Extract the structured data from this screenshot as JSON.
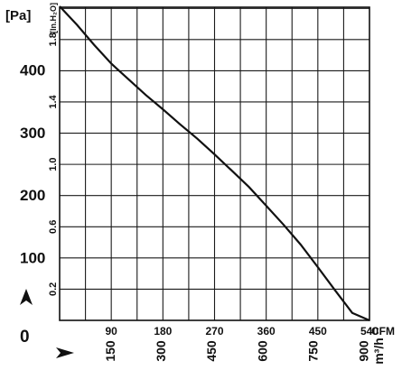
{
  "chart_data": {
    "type": "line",
    "x_unit_primary": "CFM",
    "x_unit_secondary": "m³/h",
    "y_unit_primary": "[Pa]",
    "y_unit_secondary": "[In.H₂O]",
    "xlim": [
      0,
      540
    ],
    "ylim": [
      0,
      500
    ],
    "x_cfm_ticks": [
      {
        "value": 90,
        "label": "90"
      },
      {
        "value": 180,
        "label": "180"
      },
      {
        "value": 270,
        "label": "270"
      },
      {
        "value": 360,
        "label": "360"
      },
      {
        "value": 450,
        "label": "450"
      },
      {
        "value": 540,
        "label": "540"
      }
    ],
    "x_m3h_ticks": [
      {
        "value": 150,
        "label": "150"
      },
      {
        "value": 300,
        "label": "300"
      },
      {
        "value": 450,
        "label": "450"
      },
      {
        "value": 600,
        "label": "600"
      },
      {
        "value": 750,
        "label": "750"
      },
      {
        "value": 900,
        "label": "900"
      }
    ],
    "y_pa_ticks": [
      {
        "value": 100,
        "label": "100"
      },
      {
        "value": 200,
        "label": "200"
      },
      {
        "value": 300,
        "label": "300"
      },
      {
        "value": 400,
        "label": "400"
      }
    ],
    "y_inh2o_ticks": [
      {
        "value": 0.2,
        "label": "0.2"
      },
      {
        "value": 0.6,
        "label": "0.6"
      },
      {
        "value": 1.0,
        "label": "1.0"
      },
      {
        "value": 1.4,
        "label": "1.4"
      },
      {
        "value": 1.8,
        "label": "1.8"
      }
    ],
    "origin_label": "0",
    "series": [
      {
        "x": [
          0,
          30,
          60,
          90,
          120,
          150,
          180,
          210,
          240,
          270,
          300,
          330,
          360,
          390,
          420,
          450,
          480,
          510,
          540
        ],
        "y": [
          505,
          472,
          440,
          410,
          385,
          360,
          337,
          313,
          290,
          265,
          239,
          213,
          183,
          153,
          121,
          85,
          48,
          12,
          0
        ]
      }
    ],
    "grid": true
  }
}
